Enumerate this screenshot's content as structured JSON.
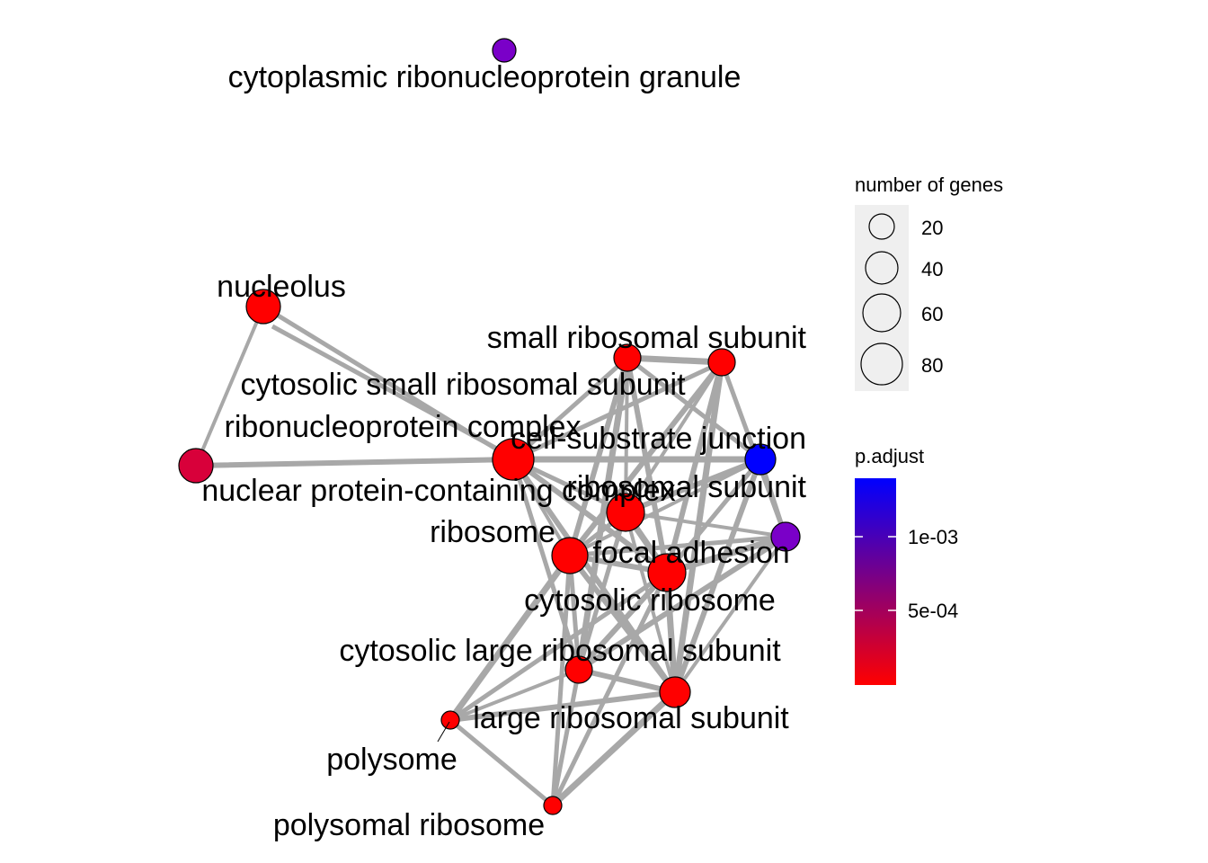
{
  "colors": {
    "edge": "#A8A8A8",
    "legend_key_bg": "#EBEBEB",
    "low": "#FF0000",
    "high": "#0000FF"
  },
  "nodes": [
    {
      "id": "cytoplasmic-ribonucleoprotein-granule",
      "label": "cytoplasmic ribonucleoprotein granule",
      "color": "#7A00C8"
    },
    {
      "id": "nucleolus",
      "label": "nucleolus",
      "color": "#FF0000"
    },
    {
      "id": "small-ribosomal-subunit",
      "label": "small ribosomal subunit",
      "color": "#FF0000"
    },
    {
      "id": "cytosolic-small-ribosomal-subunit",
      "label": "cytosolic small ribosomal subunit",
      "color": "#FF0000"
    },
    {
      "id": "ribonucleoprotein-complex",
      "label": "ribonucleoprotein complex",
      "color": "#FF0000"
    },
    {
      "id": "cell-substrate-junction",
      "label": "cell-substrate junction",
      "color": "#0000FF"
    },
    {
      "id": "nuclear-protein-containing-complex",
      "label": "nuclear protein-containing complex",
      "color": "#D8003A"
    },
    {
      "id": "ribosomal-subunit",
      "label": "ribosomal subunit",
      "color": "#FF0000"
    },
    {
      "id": "cell-substrate-junction-2",
      "label": "",
      "color": "#7A00C8"
    },
    {
      "id": "ribosome",
      "label": "ribosome",
      "color": "#FF0000"
    },
    {
      "id": "focal-adhesion",
      "label": "focal adhesion",
      "color": "#FF0000"
    },
    {
      "id": "cytosolic-ribosome",
      "label": "cytosolic ribosome",
      "color": "#FF0000"
    },
    {
      "id": "cytosolic-large-ribosomal-subunit",
      "label": "cytosolic large ribosomal subunit",
      "color": "#FF0000"
    },
    {
      "id": "large-ribosomal-subunit",
      "label": "large ribosomal subunit",
      "color": "#FF0000"
    },
    {
      "id": "polysome",
      "label": "polysome",
      "color": "#FF0000"
    },
    {
      "id": "polysomal-ribosome",
      "label": "polysomal ribosome",
      "color": "#FF0000"
    }
  ],
  "edges": [
    [
      "nucleolus",
      "nuclear-protein-containing-complex"
    ],
    [
      "nucleolus",
      "ribonucleoprotein-complex"
    ],
    [
      "nuclear-protein-containing-complex",
      "ribonucleoprotein-complex"
    ],
    [
      "small-ribosomal-subunit",
      "cytosolic-small-ribosomal-subunit"
    ],
    [
      "small-ribosomal-subunit",
      "ribonucleoprotein-complex"
    ],
    [
      "small-ribosomal-subunit",
      "ribosomal-subunit"
    ],
    [
      "small-ribosomal-subunit",
      "ribosome"
    ],
    [
      "small-ribosomal-subunit",
      "cytosolic-ribosome"
    ],
    [
      "small-ribosomal-subunit",
      "cell-substrate-junction"
    ],
    [
      "small-ribosomal-subunit",
      "focal-adhesion"
    ],
    [
      "small-ribosomal-subunit",
      "cytosolic-large-ribosomal-subunit"
    ],
    [
      "cytosolic-small-ribosomal-subunit",
      "ribonucleoprotein-complex"
    ],
    [
      "cytosolic-small-ribosomal-subunit",
      "ribosomal-subunit"
    ],
    [
      "cytosolic-small-ribosomal-subunit",
      "ribosome"
    ],
    [
      "cytosolic-small-ribosomal-subunit",
      "cytosolic-ribosome"
    ],
    [
      "cytosolic-small-ribosomal-subunit",
      "cell-substrate-junction-2"
    ],
    [
      "cytosolic-small-ribosomal-subunit",
      "focal-adhesion"
    ],
    [
      "cytosolic-small-ribosomal-subunit",
      "large-ribosomal-subunit"
    ],
    [
      "ribonucleoprotein-complex",
      "ribosomal-subunit"
    ],
    [
      "ribonucleoprotein-complex",
      "ribosome"
    ],
    [
      "ribonucleoprotein-complex",
      "cytosolic-ribosome"
    ],
    [
      "ribonucleoprotein-complex",
      "focal-adhesion"
    ],
    [
      "ribonucleoprotein-complex",
      "cytosolic-large-ribosomal-subunit"
    ],
    [
      "ribonucleoprotein-complex",
      "large-ribosomal-subunit"
    ],
    [
      "ribonucleoprotein-complex",
      "cell-substrate-junction"
    ],
    [
      "cell-substrate-junction",
      "cell-substrate-junction-2"
    ],
    [
      "cell-substrate-junction",
      "focal-adhesion"
    ],
    [
      "cell-substrate-junction",
      "ribosomal-subunit"
    ],
    [
      "cell-substrate-junction",
      "ribosome"
    ],
    [
      "cell-substrate-junction",
      "cytosolic-ribosome"
    ],
    [
      "cell-substrate-junction",
      "large-ribosomal-subunit"
    ],
    [
      "cell-substrate-junction-2",
      "focal-adhesion"
    ],
    [
      "cell-substrate-junction-2",
      "ribosome"
    ],
    [
      "cell-substrate-junction-2",
      "ribosomal-subunit"
    ],
    [
      "cell-substrate-junction-2",
      "cytosolic-large-ribosomal-subunit"
    ],
    [
      "cell-substrate-junction-2",
      "large-ribosomal-subunit"
    ],
    [
      "ribosomal-subunit",
      "ribosome"
    ],
    [
      "ribosomal-subunit",
      "focal-adhesion"
    ],
    [
      "ribosomal-subunit",
      "cytosolic-ribosome"
    ],
    [
      "ribosomal-subunit",
      "cytosolic-large-ribosomal-subunit"
    ],
    [
      "ribosomal-subunit",
      "large-ribosomal-subunit"
    ],
    [
      "ribosome",
      "focal-adhesion"
    ],
    [
      "ribosome",
      "cytosolic-ribosome"
    ],
    [
      "ribosome",
      "cytosolic-large-ribosomal-subunit"
    ],
    [
      "ribosome",
      "large-ribosomal-subunit"
    ],
    [
      "ribosome",
      "polysome"
    ],
    [
      "ribosome",
      "polysomal-ribosome"
    ],
    [
      "focal-adhesion",
      "cytosolic-ribosome"
    ],
    [
      "focal-adhesion",
      "cytosolic-large-ribosomal-subunit"
    ],
    [
      "focal-adhesion",
      "large-ribosomal-subunit"
    ],
    [
      "focal-adhesion",
      "polysomal-ribosome"
    ],
    [
      "cytosolic-ribosome",
      "cytosolic-large-ribosomal-subunit"
    ],
    [
      "cytosolic-ribosome",
      "large-ribosomal-subunit"
    ],
    [
      "cytosolic-ribosome",
      "polysome"
    ],
    [
      "cytosolic-ribosome",
      "polysomal-ribosome"
    ],
    [
      "cytosolic-large-ribosomal-subunit",
      "large-ribosomal-subunit"
    ],
    [
      "cytosolic-large-ribosomal-subunit",
      "polysome"
    ],
    [
      "cytosolic-large-ribosomal-subunit",
      "polysomal-ribosome"
    ],
    [
      "large-ribosomal-subunit",
      "polysome"
    ],
    [
      "large-ribosomal-subunit",
      "polysomal-ribosome"
    ],
    [
      "polysome",
      "polysomal-ribosome"
    ]
  ],
  "legend": {
    "size_title": "number of genes",
    "size_items": [
      {
        "label": "20",
        "value": 20
      },
      {
        "label": "40",
        "value": 40
      },
      {
        "label": "60",
        "value": 60
      },
      {
        "label": "80",
        "value": 80
      }
    ],
    "color_title": "p.adjust",
    "color_ticks": [
      "1e-03",
      "5e-04"
    ]
  }
}
